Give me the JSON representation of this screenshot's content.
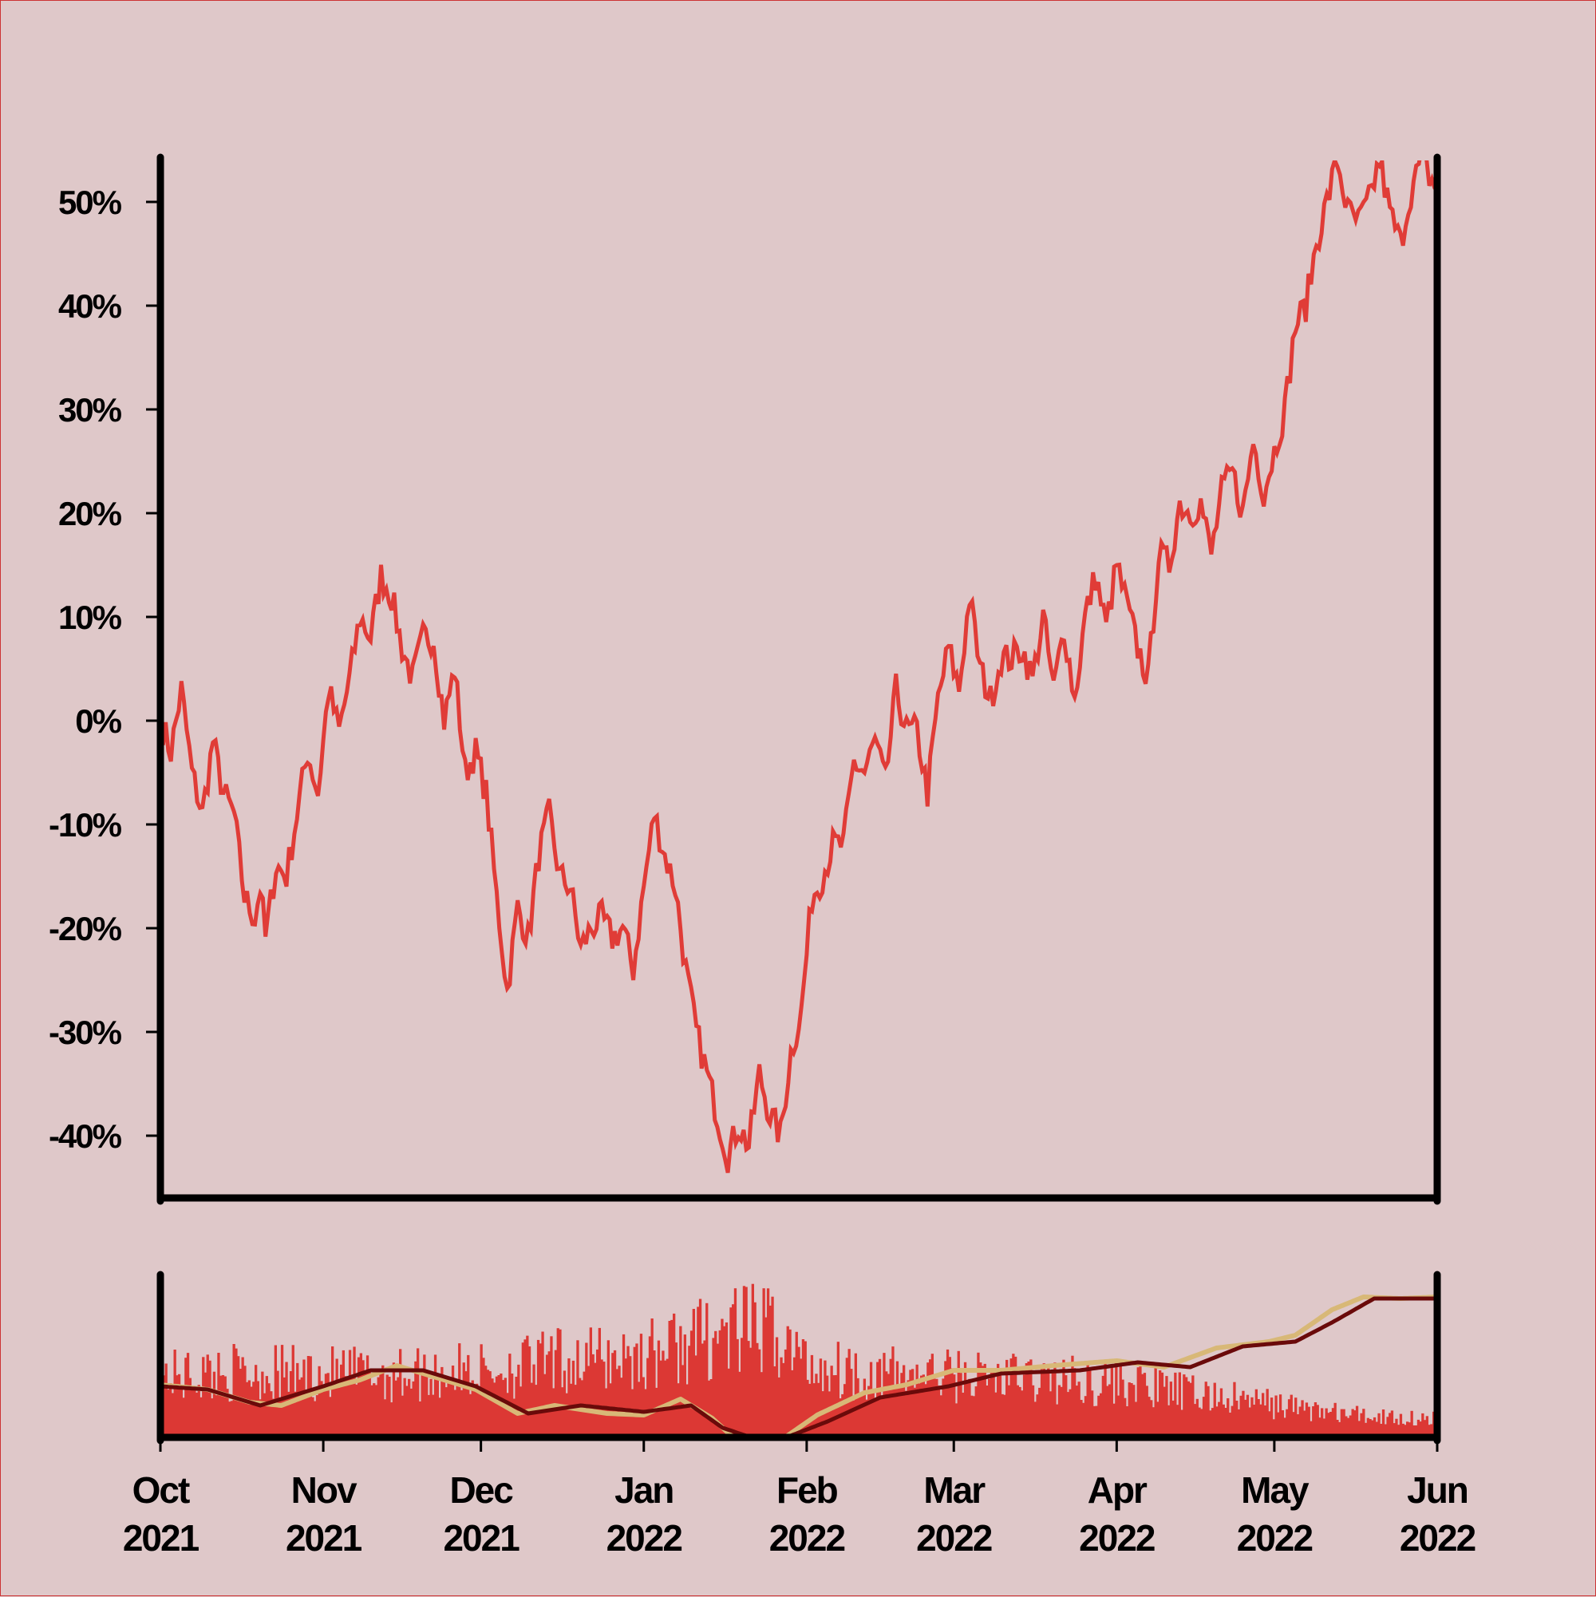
{
  "colors": {
    "background": "#dfc8c9",
    "price_line": "#e03c37",
    "volume_bars": "#dc3834",
    "ma_fast": "#d8b877",
    "ma_slow": "#6a0a0a",
    "axis": "#000000"
  },
  "chart_data": {
    "type": "line",
    "title": "",
    "xlabel": "",
    "ylabel": "",
    "x_range": [
      "2021-10-01",
      "2022-06-01"
    ],
    "ylim": [
      -46,
      54
    ],
    "yticks": [
      -40,
      -30,
      -20,
      -10,
      0,
      10,
      20,
      30,
      40,
      50
    ],
    "ytick_labels": [
      "-40%",
      "-30%",
      "-20%",
      "-10%",
      "0%",
      "10%",
      "20%",
      "30%",
      "40%",
      "50%"
    ],
    "xticks": [
      {
        "date": "2021-10-01",
        "month": "Oct",
        "year": "2021"
      },
      {
        "date": "2021-11-01",
        "month": "Nov",
        "year": "2021"
      },
      {
        "date": "2021-12-01",
        "month": "Dec",
        "year": "2021"
      },
      {
        "date": "2022-01-01",
        "month": "Jan",
        "year": "2022"
      },
      {
        "date": "2022-02-01",
        "month": "Feb",
        "year": "2022"
      },
      {
        "date": "2022-03-01",
        "month": "Mar",
        "year": "2022"
      },
      {
        "date": "2022-04-01",
        "month": "Apr",
        "year": "2022"
      },
      {
        "date": "2022-05-01",
        "month": "May",
        "year": "2022"
      },
      {
        "date": "2022-06-01",
        "month": "Jun",
        "year": "2022"
      }
    ],
    "price_series": {
      "points": [
        [
          "2021-10-01",
          0
        ],
        [
          "2021-10-03",
          -3
        ],
        [
          "2021-10-05",
          3
        ],
        [
          "2021-10-07",
          -5
        ],
        [
          "2021-10-09",
          -9
        ],
        [
          "2021-10-11",
          -2
        ],
        [
          "2021-10-13",
          -7
        ],
        [
          "2021-10-15",
          -9
        ],
        [
          "2021-10-17",
          -17
        ],
        [
          "2021-10-19",
          -19
        ],
        [
          "2021-10-20",
          -16
        ],
        [
          "2021-10-21",
          -21
        ],
        [
          "2021-10-23",
          -14
        ],
        [
          "2021-10-25",
          -15
        ],
        [
          "2021-10-27",
          -9
        ],
        [
          "2021-10-29",
          -3
        ],
        [
          "2021-10-31",
          -7
        ],
        [
          "2021-11-02",
          3
        ],
        [
          "2021-11-04",
          -1
        ],
        [
          "2021-11-06",
          4
        ],
        [
          "2021-11-08",
          10
        ],
        [
          "2021-11-10",
          8
        ],
        [
          "2021-11-12",
          14
        ],
        [
          "2021-11-14",
          12
        ],
        [
          "2021-11-16",
          7
        ],
        [
          "2021-11-18",
          4
        ],
        [
          "2021-11-20",
          8
        ],
        [
          "2021-11-22",
          8
        ],
        [
          "2021-11-24",
          0
        ],
        [
          "2021-11-26",
          5
        ],
        [
          "2021-11-28",
          -5
        ],
        [
          "2021-11-30",
          -3
        ],
        [
          "2021-12-02",
          -7
        ],
        [
          "2021-12-04",
          -17
        ],
        [
          "2021-12-06",
          -26
        ],
        [
          "2021-12-08",
          -18
        ],
        [
          "2021-12-10",
          -21
        ],
        [
          "2021-12-12",
          -13
        ],
        [
          "2021-12-14",
          -9
        ],
        [
          "2021-12-16",
          -15
        ],
        [
          "2021-12-18",
          -16
        ],
        [
          "2021-12-20",
          -22
        ],
        [
          "2021-12-22",
          -20
        ],
        [
          "2021-12-24",
          -19
        ],
        [
          "2021-12-26",
          -21
        ],
        [
          "2021-12-28",
          -20
        ],
        [
          "2021-12-30",
          -24
        ],
        [
          "2022-01-01",
          -16
        ],
        [
          "2022-01-03",
          -9
        ],
        [
          "2022-01-05",
          -13
        ],
        [
          "2022-01-07",
          -16
        ],
        [
          "2022-01-09",
          -24
        ],
        [
          "2022-01-11",
          -30
        ],
        [
          "2022-01-13",
          -34
        ],
        [
          "2022-01-15",
          -38
        ],
        [
          "2022-01-17",
          -42
        ],
        [
          "2022-01-19",
          -39
        ],
        [
          "2022-01-21",
          -41
        ],
        [
          "2022-01-23",
          -34
        ],
        [
          "2022-01-25",
          -38
        ],
        [
          "2022-01-27",
          -40
        ],
        [
          "2022-01-29",
          -32
        ],
        [
          "2022-01-31",
          -28
        ],
        [
          "2022-02-02",
          -17
        ],
        [
          "2022-02-04",
          -15
        ],
        [
          "2022-02-06",
          -12
        ],
        [
          "2022-02-08",
          -12
        ],
        [
          "2022-02-10",
          -4
        ],
        [
          "2022-02-12",
          -5
        ],
        [
          "2022-02-14",
          -2
        ],
        [
          "2022-02-16",
          -6
        ],
        [
          "2022-02-18",
          3
        ],
        [
          "2022-02-20",
          -1
        ],
        [
          "2022-02-22",
          -1
        ],
        [
          "2022-02-24",
          -7
        ],
        [
          "2022-02-26",
          2
        ],
        [
          "2022-02-28",
          7
        ],
        [
          "2022-03-02",
          3
        ],
        [
          "2022-03-04",
          12
        ],
        [
          "2022-03-06",
          5
        ],
        [
          "2022-03-08",
          2
        ],
        [
          "2022-03-10",
          6
        ],
        [
          "2022-03-12",
          6
        ],
        [
          "2022-03-14",
          7
        ],
        [
          "2022-03-16",
          4
        ],
        [
          "2022-03-18",
          10
        ],
        [
          "2022-03-20",
          3
        ],
        [
          "2022-03-22",
          9
        ],
        [
          "2022-03-24",
          2
        ],
        [
          "2022-03-26",
          10
        ],
        [
          "2022-03-28",
          14
        ],
        [
          "2022-03-30",
          9
        ],
        [
          "2022-04-01",
          15
        ],
        [
          "2022-04-03",
          11
        ],
        [
          "2022-04-05",
          7
        ],
        [
          "2022-04-07",
          4
        ],
        [
          "2022-04-09",
          16
        ],
        [
          "2022-04-11",
          15
        ],
        [
          "2022-04-13",
          21
        ],
        [
          "2022-04-15",
          20
        ],
        [
          "2022-04-17",
          21
        ],
        [
          "2022-04-19",
          16
        ],
        [
          "2022-04-21",
          22
        ],
        [
          "2022-04-23",
          24
        ],
        [
          "2022-04-25",
          20
        ],
        [
          "2022-04-27",
          27
        ],
        [
          "2022-04-29",
          22
        ],
        [
          "2022-05-01",
          26
        ],
        [
          "2022-05-03",
          30
        ],
        [
          "2022-05-05",
          38
        ],
        [
          "2022-05-07",
          40
        ],
        [
          "2022-05-09",
          46
        ],
        [
          "2022-05-11",
          50
        ],
        [
          "2022-05-13",
          54
        ],
        [
          "2022-05-15",
          49
        ],
        [
          "2022-05-17",
          48
        ],
        [
          "2022-05-19",
          50
        ],
        [
          "2022-05-21",
          54
        ],
        [
          "2022-05-23",
          49
        ],
        [
          "2022-05-25",
          46
        ],
        [
          "2022-05-27",
          51
        ],
        [
          "2022-05-29",
          54
        ],
        [
          "2022-06-01",
          51
        ]
      ]
    },
    "volume_panel": {
      "type": "bar",
      "has_axis_labels": false,
      "vlim": [
        0,
        100
      ],
      "volume_envelope": [
        [
          "2021-10-01",
          46
        ],
        [
          "2021-10-15",
          49
        ],
        [
          "2021-11-01",
          48
        ],
        [
          "2021-11-15",
          48
        ],
        [
          "2021-12-01",
          50
        ],
        [
          "2021-12-15",
          57
        ],
        [
          "2022-01-01",
          62
        ],
        [
          "2022-01-15",
          78
        ],
        [
          "2022-01-25",
          82
        ],
        [
          "2022-02-01",
          55
        ],
        [
          "2022-02-15",
          48
        ],
        [
          "2022-03-01",
          47
        ],
        [
          "2022-03-15",
          45
        ],
        [
          "2022-04-01",
          42
        ],
        [
          "2022-04-15",
          33
        ],
        [
          "2022-05-01",
          25
        ],
        [
          "2022-05-15",
          17
        ],
        [
          "2022-06-01",
          14
        ]
      ],
      "ma_fast": [
        [
          "2021-10-01",
          33
        ],
        [
          "2021-10-10",
          30
        ],
        [
          "2021-10-18",
          22
        ],
        [
          "2021-10-24",
          20
        ],
        [
          "2021-11-01",
          30
        ],
        [
          "2021-11-08",
          36
        ],
        [
          "2021-11-15",
          45
        ],
        [
          "2021-11-22",
          38
        ],
        [
          "2021-11-30",
          30
        ],
        [
          "2021-12-08",
          15
        ],
        [
          "2021-12-15",
          20
        ],
        [
          "2021-12-25",
          15
        ],
        [
          "2022-01-01",
          14
        ],
        [
          "2022-01-08",
          24
        ],
        [
          "2022-01-14",
          12
        ],
        [
          "2022-01-20",
          -6
        ],
        [
          "2022-01-27",
          -2
        ],
        [
          "2022-02-03",
          14
        ],
        [
          "2022-02-12",
          28
        ],
        [
          "2022-02-20",
          33
        ],
        [
          "2022-03-01",
          42
        ],
        [
          "2022-03-10",
          42
        ],
        [
          "2022-03-20",
          45
        ],
        [
          "2022-04-01",
          48
        ],
        [
          "2022-04-10",
          44
        ],
        [
          "2022-04-20",
          56
        ],
        [
          "2022-04-30",
          60
        ],
        [
          "2022-05-05",
          64
        ],
        [
          "2022-05-12",
          80
        ],
        [
          "2022-05-18",
          88
        ],
        [
          "2022-05-25",
          87
        ],
        [
          "2022-06-01",
          88
        ]
      ],
      "ma_slow": [
        [
          "2021-10-01",
          32
        ],
        [
          "2021-10-10",
          30
        ],
        [
          "2021-10-20",
          20
        ],
        [
          "2021-11-01",
          32
        ],
        [
          "2021-11-10",
          42
        ],
        [
          "2021-11-20",
          42
        ],
        [
          "2021-11-30",
          32
        ],
        [
          "2021-12-10",
          15
        ],
        [
          "2021-12-20",
          20
        ],
        [
          "2022-01-01",
          16
        ],
        [
          "2022-01-10",
          20
        ],
        [
          "2022-01-16",
          6
        ],
        [
          "2022-01-25",
          -4
        ],
        [
          "2022-02-05",
          10
        ],
        [
          "2022-02-15",
          25
        ],
        [
          "2022-02-28",
          32
        ],
        [
          "2022-03-10",
          40
        ],
        [
          "2022-03-25",
          42
        ],
        [
          "2022-04-05",
          47
        ],
        [
          "2022-04-15",
          44
        ],
        [
          "2022-04-25",
          57
        ],
        [
          "2022-05-05",
          60
        ],
        [
          "2022-05-12",
          72
        ],
        [
          "2022-05-20",
          87
        ],
        [
          "2022-06-01",
          87
        ]
      ]
    }
  }
}
